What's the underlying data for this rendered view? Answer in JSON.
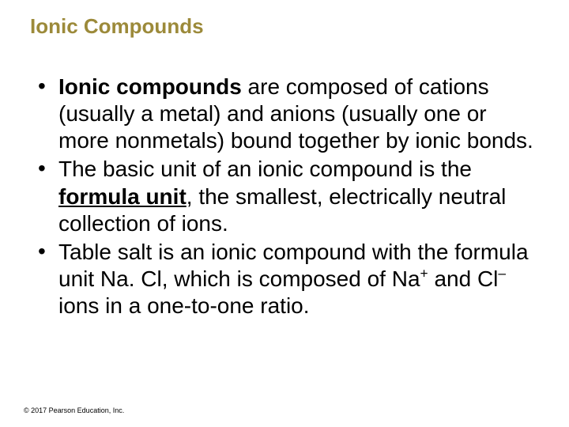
{
  "slide": {
    "title": "Ionic Compounds",
    "title_color": "#9c8a3a",
    "title_fontsize": 26,
    "background_color": "#ffffff",
    "body_fontsize": 28,
    "body_color": "#000000",
    "bullets": [
      {
        "lead_bold": "Ionic compounds",
        "tail": " are composed of cations (usually a metal) and anions (usually one or more nonmetals) bound together by ionic bonds."
      },
      {
        "pre": "The basic unit of an ionic compound is the ",
        "bold_under": "formula unit",
        "post": ", the smallest, electrically neutral collection of ions."
      },
      {
        "pre2": "Table salt is an ionic compound with the formula unit Na. Cl, which is composed of Na",
        "sup1": "+",
        "mid": " and Cl",
        "sup2": "–",
        "post2": " ions in a one-to-one ratio."
      }
    ],
    "footer": "© 2017 Pearson Education, Inc."
  }
}
